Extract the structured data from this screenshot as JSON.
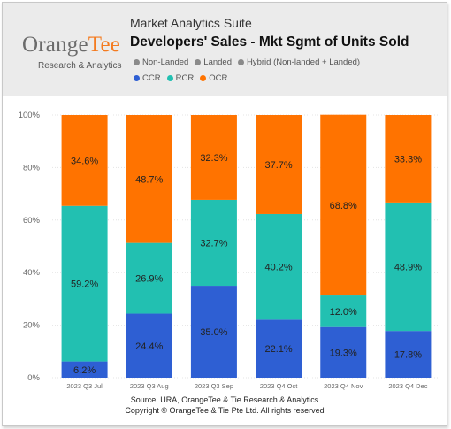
{
  "header": {
    "logo_text_a": "Orange",
    "logo_text_b": "Tee",
    "tagline": "Research & Analytics",
    "suite": "Market Analytics Suite",
    "title": "Developers' Sales - Mkt Sgmt of Units Sold"
  },
  "filter_legend": [
    {
      "label": "Non-Landed",
      "color": "#8a8a8a"
    },
    {
      "label": "Landed",
      "color": "#8a8a8a"
    },
    {
      "label": "Hybrid (Non-landed + Landed)",
      "color": "#8a8a8a"
    }
  ],
  "series_legend": [
    {
      "label": "CCR",
      "color": "#2e5fd3"
    },
    {
      "label": "RCR",
      "color": "#22c0b1"
    },
    {
      "label": "OCR",
      "color": "#ff7300"
    }
  ],
  "chart_data": {
    "type": "bar",
    "stacked": true,
    "categories": [
      "2023 Q3 Jul",
      "2023 Q3 Aug",
      "2023 Q3 Sep",
      "2023 Q4 Oct",
      "2023 Q4 Nov",
      "2023 Q4 Dec"
    ],
    "series": [
      {
        "name": "CCR",
        "color": "#2e5fd3",
        "values": [
          6.2,
          24.4,
          35.0,
          22.1,
          19.3,
          17.8
        ],
        "labels": [
          "6.2%",
          "24.4%",
          "35.0%",
          "22.1%",
          "19.3%",
          "17.8%"
        ]
      },
      {
        "name": "RCR",
        "color": "#22c0b1",
        "values": [
          59.2,
          26.9,
          32.7,
          40.2,
          12.0,
          48.9
        ],
        "labels": [
          "59.2%",
          "26.9%",
          "32.7%",
          "40.2%",
          "12.0%",
          "48.9%"
        ]
      },
      {
        "name": "OCR",
        "color": "#ff7300",
        "values": [
          34.6,
          48.7,
          32.3,
          37.7,
          68.8,
          33.3
        ],
        "labels": [
          "34.6%",
          "48.7%",
          "32.3%",
          "37.7%",
          "68.8%",
          "33.3%"
        ]
      }
    ],
    "yticks": [
      "0%",
      "20%",
      "40%",
      "60%",
      "80%",
      "100%"
    ],
    "ylim": [
      0,
      100
    ],
    "grid": true
  },
  "footer": {
    "source": "Source: URA, OrangeTee & Tie Research & Analytics",
    "copyright": "Copyright © OrangeTee & Tie Pte Ltd. All rights reserved"
  }
}
